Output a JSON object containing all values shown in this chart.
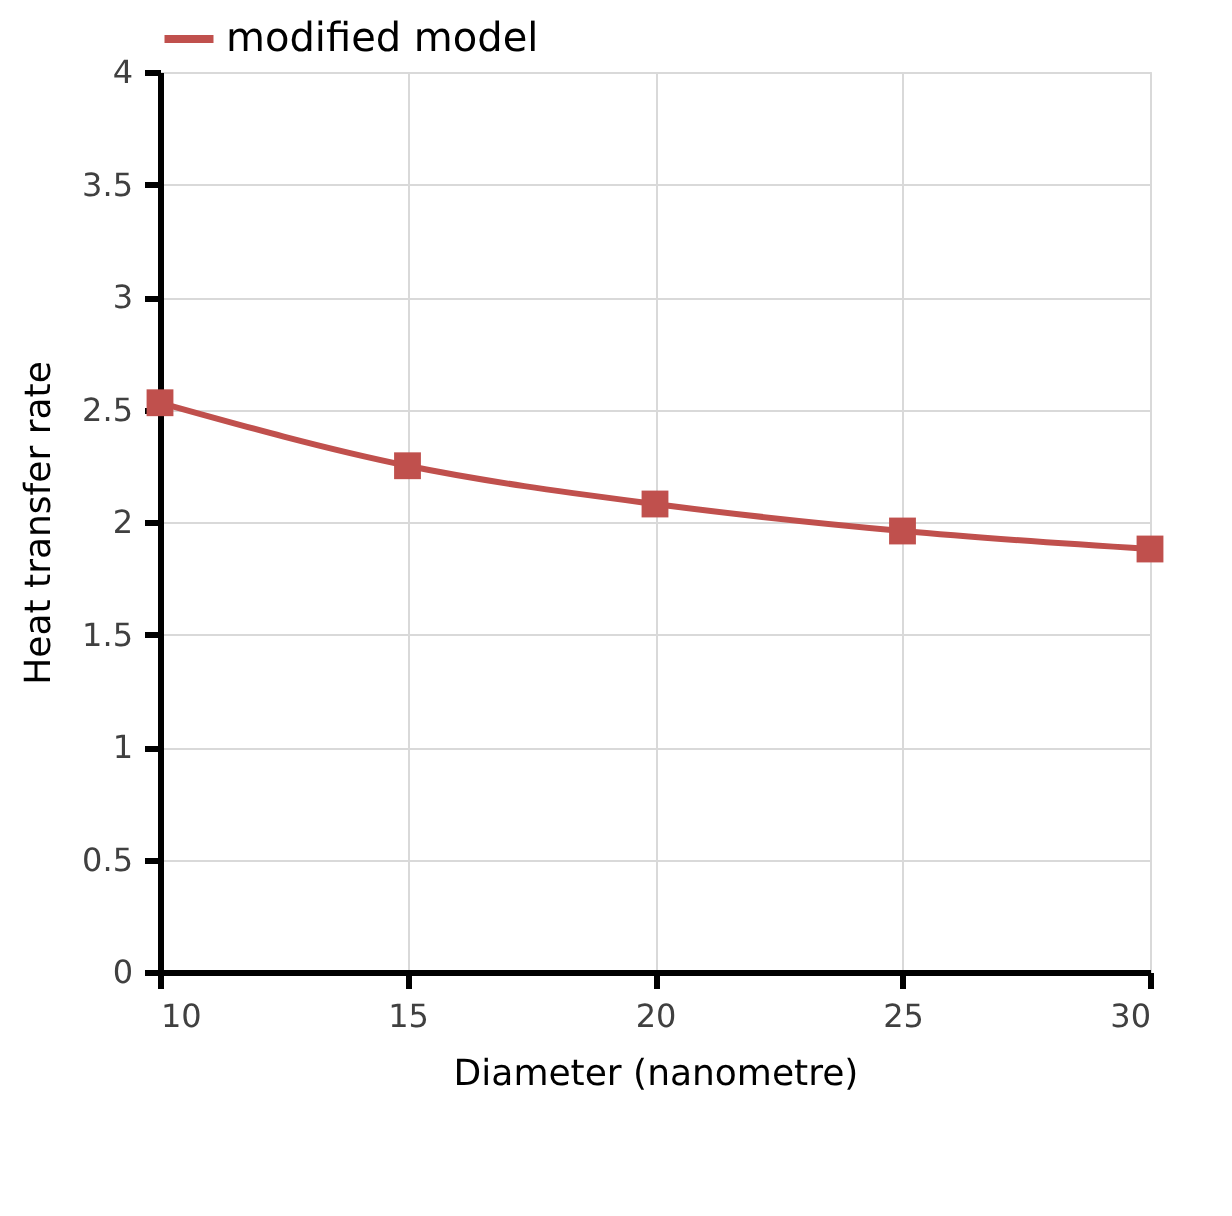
{
  "chart_data": {
    "type": "line",
    "xlabel": "Diameter (nanometre)",
    "ylabel": "Heat transfer rate",
    "x": [
      10,
      15,
      20,
      25,
      30
    ],
    "series": [
      {
        "name": "modified model",
        "color": "#c0504d",
        "values": [
          2.53,
          2.25,
          2.08,
          1.96,
          1.88
        ]
      }
    ],
    "xlim": [
      10,
      30
    ],
    "xticks": [
      10,
      15,
      20,
      25,
      30
    ],
    "ylim": [
      0,
      4
    ],
    "yticks": [
      0,
      0.5,
      1,
      1.5,
      2,
      2.5,
      3,
      3.5,
      4
    ],
    "grid": true,
    "legend": "top left",
    "marker": "square",
    "line_style": "solid"
  }
}
